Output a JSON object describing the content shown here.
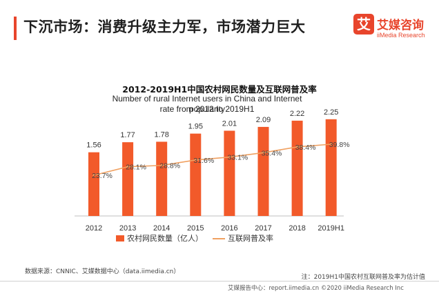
{
  "header": {
    "title": "下沉市场：消费升级主力军，市场潜力巨大"
  },
  "brand": {
    "logo_glyph": "艾",
    "name_cn": "艾媒咨询",
    "name_en": "iiMedia Research"
  },
  "chart_data": {
    "type": "bar",
    "title": "2012-2019H1中国农村网民数量及互联网普及率",
    "subtitle_line1": "Number of rural Internet users in China and Internet popularity",
    "subtitle_line2": "rate from 2012 to 2019H1",
    "categories": [
      "2012",
      "2013",
      "2014",
      "2015",
      "2016",
      "2017",
      "2018",
      "2019H1"
    ],
    "series": [
      {
        "name": "农村网民数量（亿人）",
        "type": "bar",
        "color": "#f25a2a",
        "values": [
          1.56,
          1.77,
          1.78,
          1.95,
          2.01,
          2.09,
          2.22,
          2.25
        ],
        "labels": [
          "1.56",
          "1.77",
          "1.78",
          "1.95",
          "2.01",
          "2.09",
          "2.22",
          "2.25"
        ]
      },
      {
        "name": "互联网普及率",
        "type": "line",
        "color": "#f0a060",
        "values": [
          23.7,
          28.1,
          28.8,
          31.6,
          33.1,
          35.4,
          38.4,
          39.8
        ],
        "labels": [
          "23.7%",
          "28.1%",
          "28.8%",
          "31.6%",
          "33.1%",
          "35.4%",
          "38.4%",
          "39.8%"
        ]
      }
    ],
    "legend_position": "bottom",
    "grid": false
  },
  "source_text": "数据来源：CNNIC、艾媒数据中心（data.iimedia.cn）",
  "note_text": "注：2019H1中国农村互联网普及率为估计值",
  "footer_text": "艾媒报告中心：report.iimedia.cn  ©2020  iiMedia Research  Inc"
}
